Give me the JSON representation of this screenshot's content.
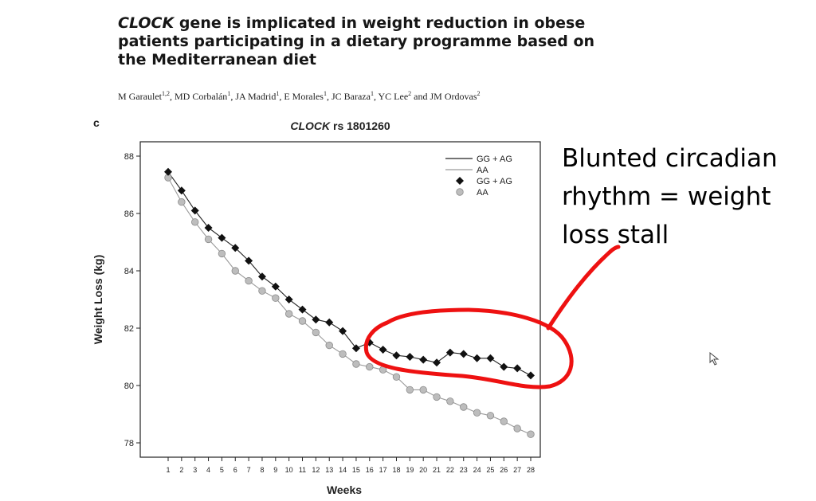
{
  "paper": {
    "title_gene": "CLOCK",
    "title_rest": "gene is implicated in weight reduction in obese patients participating in a dietary programme based on the Mediterranean diet",
    "authors": [
      {
        "name": "M Garaulet",
        "sup": "1,2"
      },
      {
        "name": "MD Corbalán",
        "sup": "1"
      },
      {
        "name": "JA Madrid",
        "sup": "1"
      },
      {
        "name": "E Morales",
        "sup": "1"
      },
      {
        "name": "JC Baraza",
        "sup": "1"
      },
      {
        "name": "YC Lee",
        "sup": "2"
      },
      {
        "name": "JM Ordovas",
        "sup": "2"
      }
    ],
    "authors_conjunction": "and"
  },
  "panel_letter": "c",
  "annotation": {
    "text": "Blunted circadian rhythm = weight loss stall",
    "color": "#ee1111"
  },
  "chart_data": {
    "type": "line",
    "title_italic": "CLOCK",
    "title_rest": "rs 1801260",
    "xlabel": "Weeks",
    "ylabel": "Weight Loss (kg)",
    "x": [
      1,
      2,
      3,
      4,
      5,
      6,
      7,
      8,
      9,
      10,
      11,
      12,
      13,
      14,
      15,
      16,
      17,
      18,
      19,
      20,
      21,
      22,
      23,
      24,
      25,
      26,
      27,
      28
    ],
    "xlim": [
      1,
      28
    ],
    "ylim": [
      77.5,
      88.5
    ],
    "yticks": [
      78,
      80,
      82,
      84,
      86,
      88
    ],
    "series": [
      {
        "name": "GG + AG",
        "marker": "diamond",
        "color": "#111111",
        "values": [
          87.45,
          86.8,
          86.1,
          85.5,
          85.15,
          84.8,
          84.35,
          83.8,
          83.45,
          83.0,
          82.65,
          82.3,
          82.2,
          81.9,
          81.3,
          81.5,
          81.25,
          81.05,
          81.0,
          80.9,
          80.8,
          81.15,
          81.1,
          80.95,
          80.95,
          80.65,
          80.6,
          80.35
        ]
      },
      {
        "name": "AA",
        "marker": "circle",
        "color": "#bdbdbd",
        "values": [
          87.25,
          86.4,
          85.7,
          85.1,
          84.6,
          84.0,
          83.65,
          83.3,
          83.05,
          82.5,
          82.25,
          81.85,
          81.4,
          81.1,
          80.75,
          80.65,
          80.55,
          80.3,
          79.85,
          79.85,
          79.6,
          79.45,
          79.25,
          79.05,
          78.95,
          78.75,
          78.5,
          78.3
        ]
      }
    ],
    "legend": {
      "placement": "top-right",
      "entries": [
        {
          "label": "GG + AG",
          "kind": "line",
          "series": 0
        },
        {
          "label": "AA",
          "kind": "line",
          "series": 1
        },
        {
          "label": "GG + AG",
          "kind": "marker",
          "series": 0
        },
        {
          "label": "AA",
          "kind": "marker",
          "series": 1
        }
      ]
    },
    "grid": false
  }
}
